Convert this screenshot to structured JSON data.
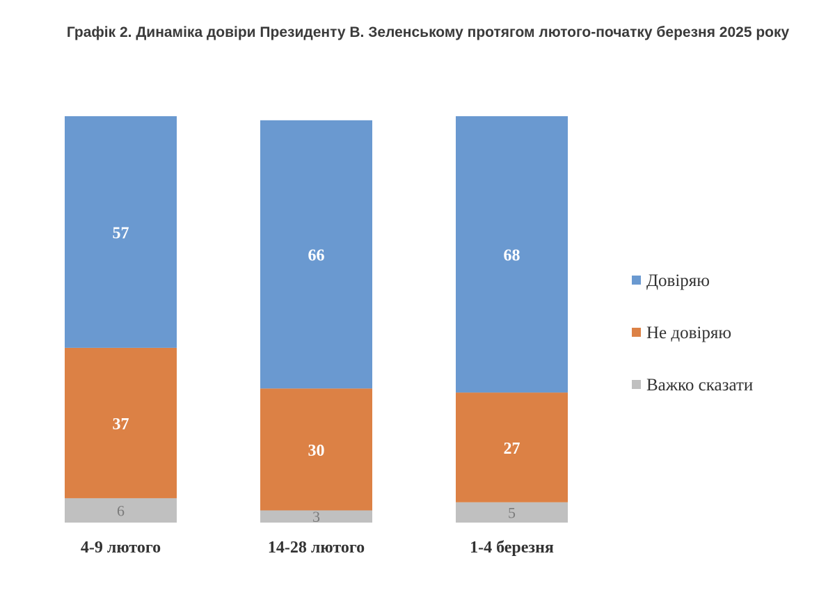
{
  "chart_data": {
    "type": "bar",
    "stacked": true,
    "title": "Графік 2. Динаміка довіри Президенту В. Зеленському протягом лютого-початку березня 2025 року",
    "categories": [
      "4-9 лютого",
      "14-28 лютого",
      "1-4 березня"
    ],
    "series": [
      {
        "name": "Довіряю",
        "values": [
          57,
          66,
          68
        ],
        "color": "#6a99d0"
      },
      {
        "name": "Не довіряю",
        "values": [
          37,
          30,
          27
        ],
        "color": "#dc8145"
      },
      {
        "name": "Важко сказати",
        "values": [
          6,
          3,
          5
        ],
        "color": "#c0c0c0"
      }
    ],
    "ylim": [
      0,
      100
    ],
    "grid": false,
    "legend": "right"
  }
}
